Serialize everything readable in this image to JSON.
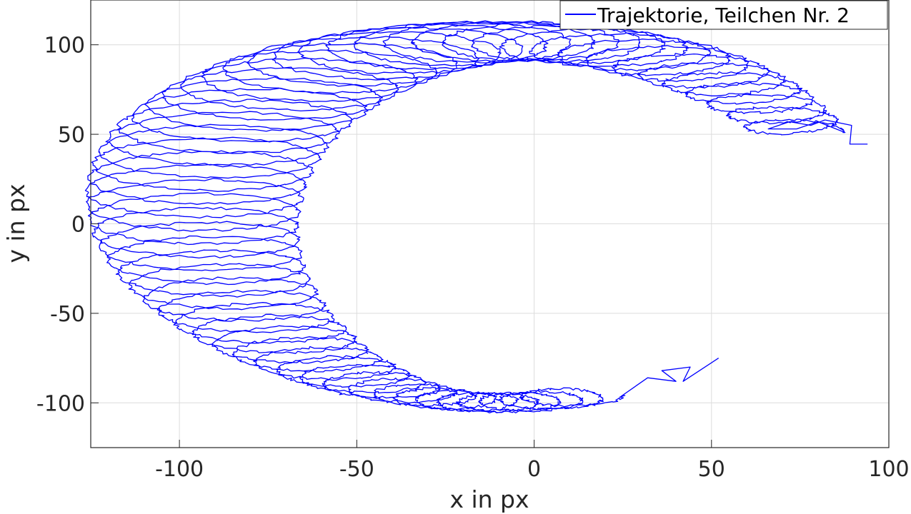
{
  "chart_data": {
    "type": "line",
    "xlabel": "x in px",
    "ylabel": "y in px",
    "xlim": [
      -125,
      100
    ],
    "ylim": [
      -125,
      125
    ],
    "xticks": [
      -100,
      -50,
      0,
      50,
      100
    ],
    "yticks": [
      -100,
      -50,
      0,
      50,
      100
    ],
    "xtick_labels": [
      "-100",
      "-50",
      "0",
      "50",
      "100"
    ],
    "ytick_labels": [
      "-100",
      "-50",
      "0",
      "50",
      "100"
    ],
    "grid": true,
    "legend_position": "top-right",
    "colors": {
      "series": "#0000ff",
      "grid": "#dcdcdc",
      "axes": "#262626"
    },
    "series": [
      {
        "name": "Trajektorie, Teilchen Nr. 2",
        "trajectory": {
          "start": [
            94,
            44.5
          ],
          "end": [
            52,
            -75
          ],
          "center_start": [
            80,
            58
          ],
          "arc_radius_x": 92,
          "arc_radius_y": 108,
          "arc_center": [
            -8,
            -2
          ],
          "angle_start_deg": 30,
          "angle_end_deg": -75,
          "loops": 58
        },
        "points_sampled": [
          [
            94,
            44.5
          ],
          [
            89,
            45
          ],
          [
            90,
            55
          ],
          [
            82,
            58
          ],
          [
            77,
            54
          ],
          [
            66,
            53
          ],
          [
            40,
            88
          ],
          [
            0,
            105
          ],
          [
            -40,
            95
          ],
          [
            -80,
            68
          ],
          [
            -100,
            30
          ],
          [
            -112,
            -20
          ],
          [
            -105,
            -60
          ],
          [
            -80,
            -85
          ],
          [
            -40,
            -105
          ],
          [
            0,
            -110
          ],
          [
            25,
            -100
          ],
          [
            40,
            -90
          ],
          [
            52,
            -75
          ]
        ]
      }
    ]
  }
}
